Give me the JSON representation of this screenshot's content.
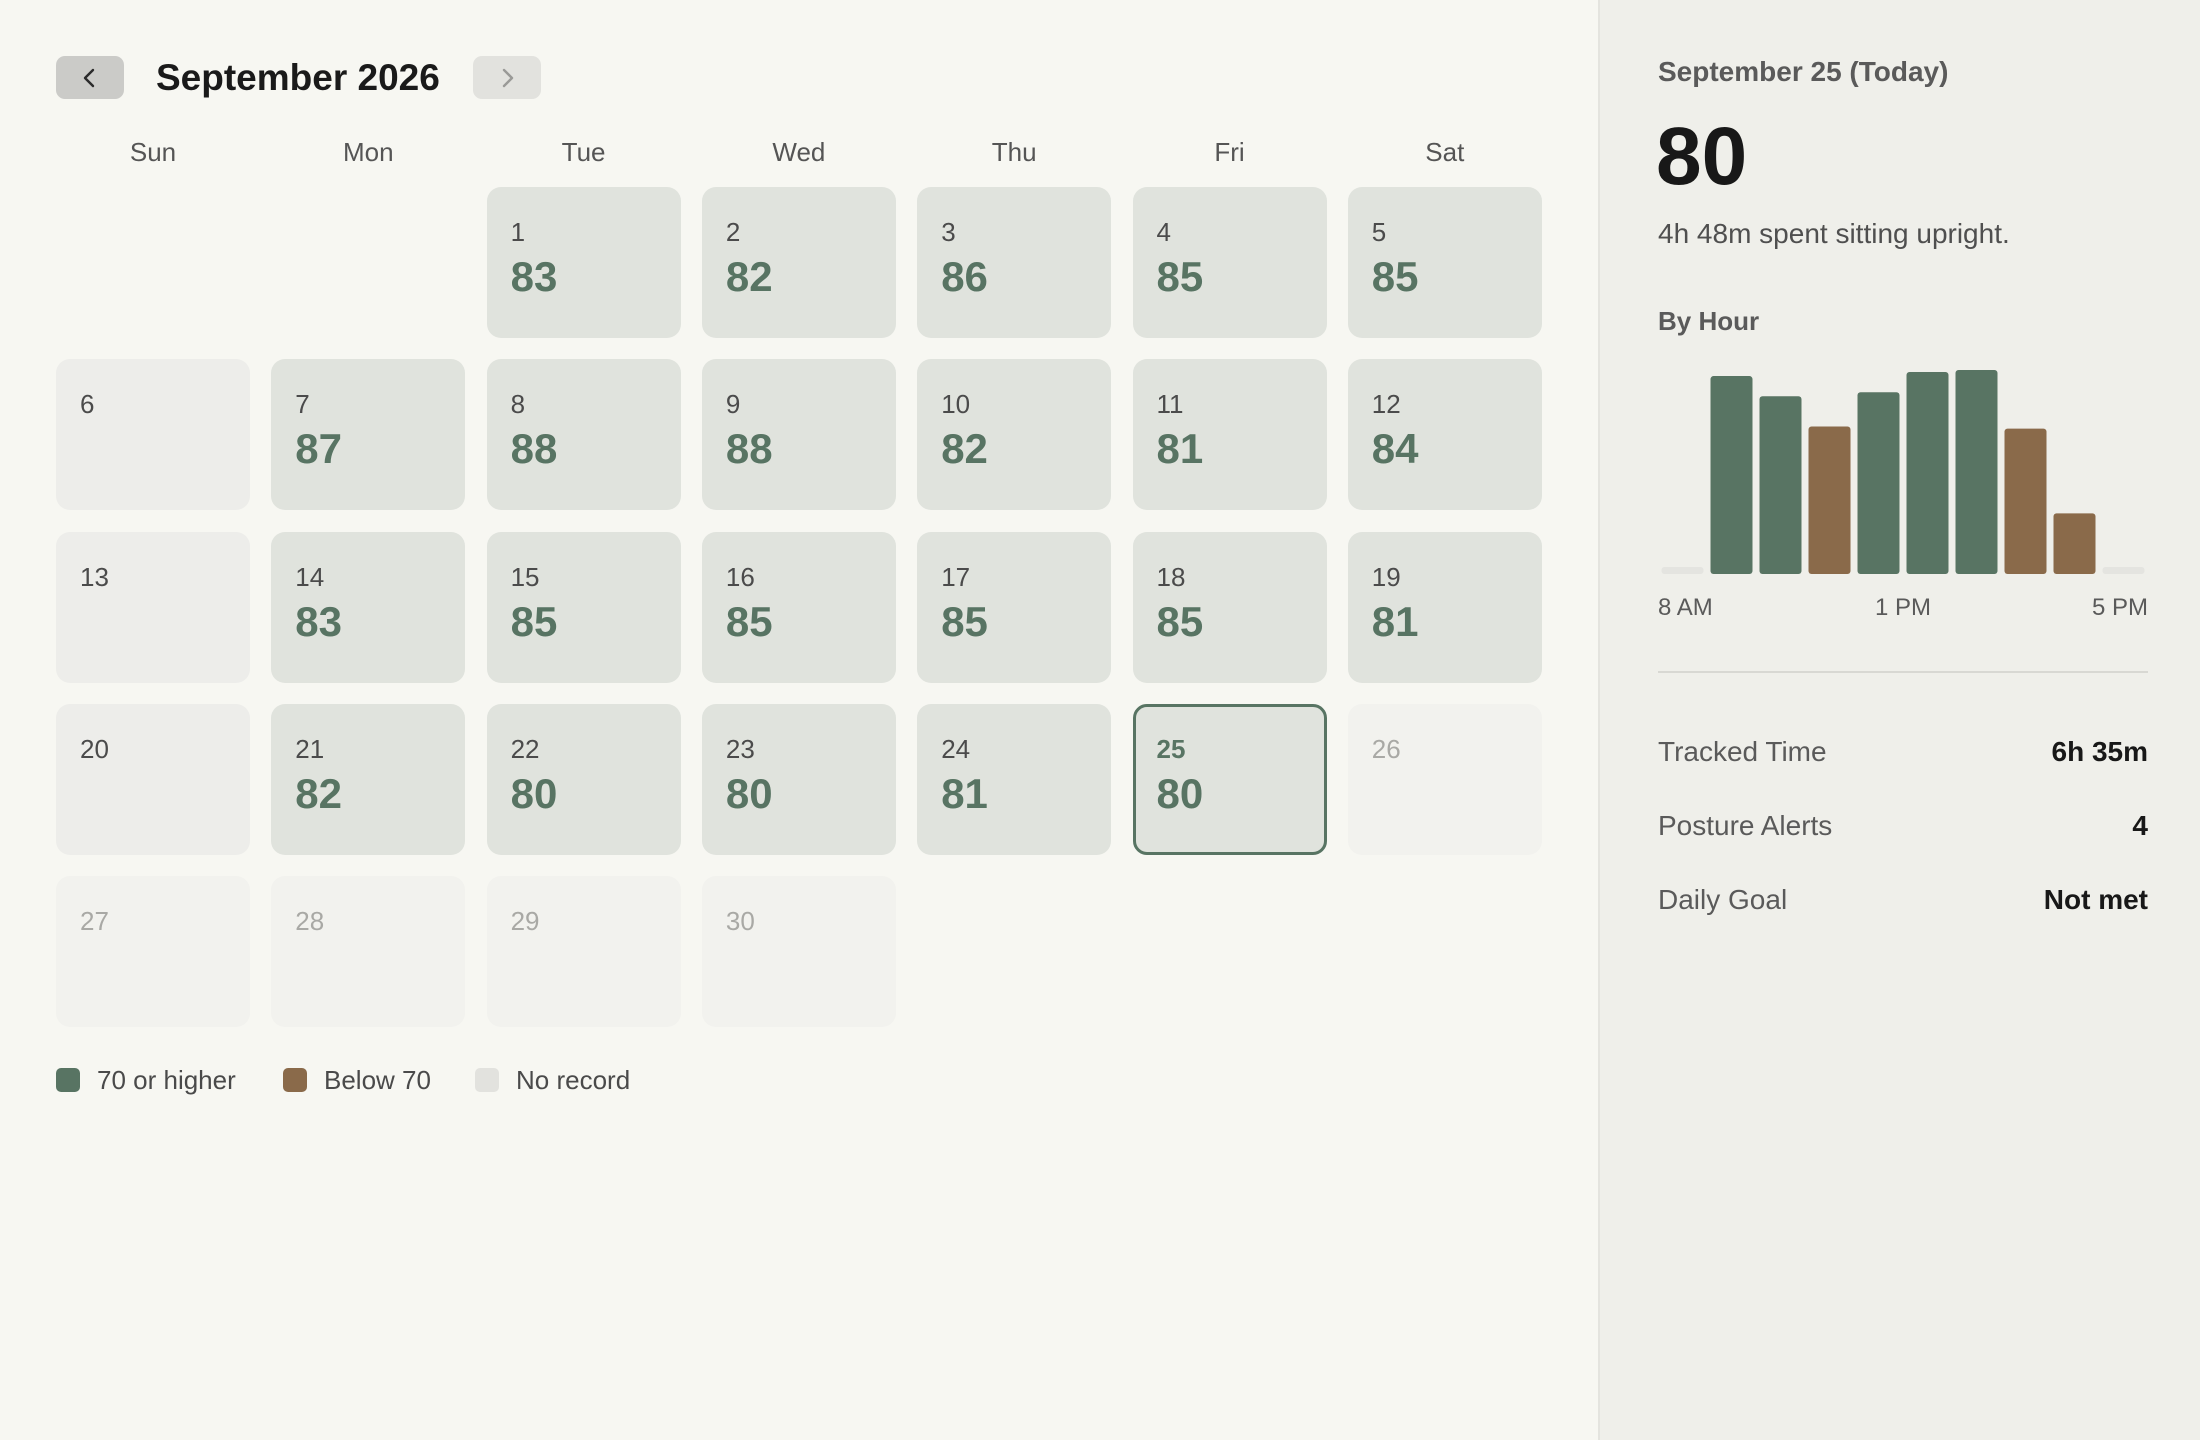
{
  "calendar": {
    "month_title": "September 2026",
    "prev_icon": "chevron-left-icon",
    "next_icon": "chevron-right-icon",
    "weekdays": [
      "Sun",
      "Mon",
      "Tue",
      "Wed",
      "Thu",
      "Fri",
      "Sat"
    ],
    "first_weekday_index": 2,
    "today": 25,
    "days": [
      {
        "day": "1",
        "score": "83",
        "status": "scored"
      },
      {
        "day": "2",
        "score": "82",
        "status": "scored"
      },
      {
        "day": "3",
        "score": "86",
        "status": "scored"
      },
      {
        "day": "4",
        "score": "85",
        "status": "scored"
      },
      {
        "day": "5",
        "score": "85",
        "status": "scored"
      },
      {
        "day": "6",
        "score": "",
        "status": "no-record"
      },
      {
        "day": "7",
        "score": "87",
        "status": "scored"
      },
      {
        "day": "8",
        "score": "88",
        "status": "scored"
      },
      {
        "day": "9",
        "score": "88",
        "status": "scored"
      },
      {
        "day": "10",
        "score": "82",
        "status": "scored"
      },
      {
        "day": "11",
        "score": "81",
        "status": "scored"
      },
      {
        "day": "12",
        "score": "84",
        "status": "scored"
      },
      {
        "day": "13",
        "score": "",
        "status": "no-record"
      },
      {
        "day": "14",
        "score": "83",
        "status": "scored"
      },
      {
        "day": "15",
        "score": "85",
        "status": "scored"
      },
      {
        "day": "16",
        "score": "85",
        "status": "scored"
      },
      {
        "day": "17",
        "score": "85",
        "status": "scored"
      },
      {
        "day": "18",
        "score": "85",
        "status": "scored"
      },
      {
        "day": "19",
        "score": "81",
        "status": "scored"
      },
      {
        "day": "20",
        "score": "",
        "status": "no-record"
      },
      {
        "day": "21",
        "score": "82",
        "status": "scored"
      },
      {
        "day": "22",
        "score": "80",
        "status": "scored"
      },
      {
        "day": "23",
        "score": "80",
        "status": "scored"
      },
      {
        "day": "24",
        "score": "81",
        "status": "scored"
      },
      {
        "day": "25",
        "score": "80",
        "status": "today"
      },
      {
        "day": "26",
        "score": "",
        "status": "future"
      },
      {
        "day": "27",
        "score": "",
        "status": "future"
      },
      {
        "day": "28",
        "score": "",
        "status": "future"
      },
      {
        "day": "29",
        "score": "",
        "status": "future"
      },
      {
        "day": "30",
        "score": "",
        "status": "future"
      }
    ]
  },
  "legend": [
    {
      "label": "70 or higher",
      "color": "#587463"
    },
    {
      "label": "Below 70",
      "color": "#8a6a4a"
    },
    {
      "label": "No record",
      "color": "#e2e2de"
    }
  ],
  "detail": {
    "date_label": "September 25 (Today)",
    "score": "80",
    "description": "4h 48m spent sitting upright.",
    "by_hour_title": "By Hour",
    "x_axis_labels": [
      "8 AM",
      "1 PM",
      "5 PM"
    ],
    "stats": [
      {
        "label": "Tracked Time",
        "value": "6h 35m"
      },
      {
        "label": "Posture Alerts",
        "value": "4"
      },
      {
        "label": "Daily Goal",
        "value": "Not met"
      }
    ]
  },
  "colors": {
    "good": "#587463",
    "below": "#8a6a4a",
    "empty": "#e4e4e0"
  },
  "chart_data": {
    "type": "bar",
    "title": "By Hour",
    "categories": [
      "8 AM",
      "9 AM",
      "10 AM",
      "11 AM",
      "12 PM",
      "1 PM",
      "2 PM",
      "3 PM",
      "4 PM",
      "5 PM"
    ],
    "values": [
      0,
      98,
      88,
      73,
      90,
      100,
      101,
      72,
      30,
      0
    ],
    "status": [
      "none",
      "good",
      "good",
      "below",
      "good",
      "good",
      "good",
      "below",
      "below",
      "none"
    ],
    "ylim": [
      0,
      101
    ],
    "grid": false,
    "legend": "none",
    "x_tick_labels": [
      "8 AM",
      "1 PM",
      "5 PM"
    ]
  }
}
